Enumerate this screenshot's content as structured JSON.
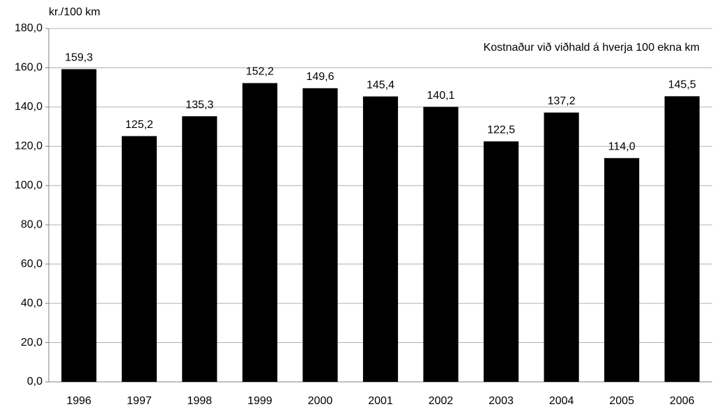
{
  "chart_data": {
    "type": "bar",
    "y_axis_label": "kr./100 km",
    "annotation": "Kostnaður við viðhald á hverja 100 ekna km",
    "categories": [
      "1996",
      "1997",
      "1998",
      "1999",
      "2000",
      "2001",
      "2002",
      "2003",
      "2004",
      "2005",
      "2006"
    ],
    "values": [
      159.3,
      125.2,
      135.3,
      152.2,
      149.6,
      145.4,
      140.1,
      122.5,
      137.2,
      114.0,
      145.5
    ],
    "value_labels": [
      "159,3",
      "125,2",
      "135,3",
      "152,2",
      "149,6",
      "145,4",
      "140,1",
      "122,5",
      "137,2",
      "114,0",
      "145,5"
    ],
    "color": "#000000",
    "ylim": [
      0,
      180
    ],
    "yticks": [
      {
        "value": 0,
        "label": "0,0"
      },
      {
        "value": 20,
        "label": "20,0"
      },
      {
        "value": 40,
        "label": "40,0"
      },
      {
        "value": 60,
        "label": "60,0"
      },
      {
        "value": 80,
        "label": "80,0"
      },
      {
        "value": 100,
        "label": "100,0"
      },
      {
        "value": 120,
        "label": "120,0"
      },
      {
        "value": 140,
        "label": "140,0"
      },
      {
        "value": 160,
        "label": "160,0"
      },
      {
        "value": 180,
        "label": "180,0"
      }
    ],
    "grid": true
  }
}
